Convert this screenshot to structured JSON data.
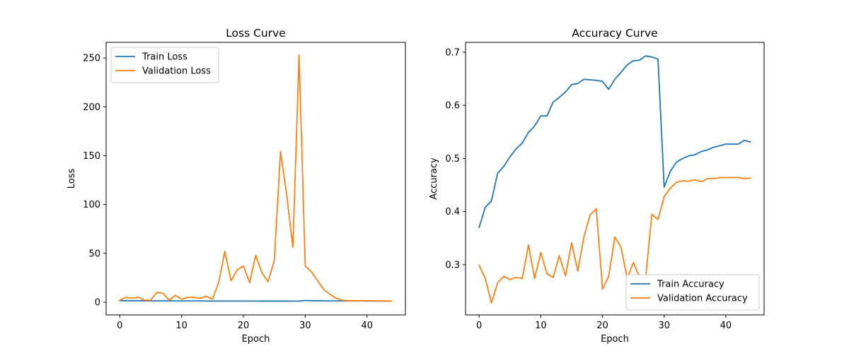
{
  "chart_data": [
    {
      "type": "line",
      "title": "Loss Curve",
      "xlabel": "Epoch",
      "ylabel": "Loss",
      "xlim": [
        -2.2,
        46.2
      ],
      "ylim": [
        -13,
        266
      ],
      "xticks": [
        0,
        10,
        20,
        30,
        40
      ],
      "yticks": [
        0,
        50,
        100,
        150,
        200,
        250
      ],
      "grid": false,
      "legend_position": "top-left",
      "x": [
        0,
        1,
        2,
        3,
        4,
        5,
        6,
        7,
        8,
        9,
        10,
        11,
        12,
        13,
        14,
        15,
        16,
        17,
        18,
        19,
        20,
        21,
        22,
        23,
        24,
        25,
        26,
        27,
        28,
        29,
        30,
        31,
        32,
        33,
        34,
        35,
        36,
        37,
        38,
        39,
        40,
        41,
        42,
        43,
        44
      ],
      "series": [
        {
          "name": "Train Loss",
          "color": "#1f77b4",
          "values": [
            1.6,
            1.5,
            1.5,
            1.45,
            1.4,
            1.4,
            1.35,
            1.35,
            1.3,
            1.3,
            1.3,
            1.25,
            1.25,
            1.25,
            1.2,
            1.2,
            1.2,
            1.2,
            1.2,
            1.2,
            1.2,
            1.2,
            1.2,
            1.15,
            1.15,
            1.15,
            1.15,
            1.15,
            1.1,
            1.1,
            1.7,
            1.5,
            1.4,
            1.35,
            1.3,
            1.3,
            1.25,
            1.25,
            1.25,
            1.25,
            1.2,
            1.2,
            1.2,
            1.2,
            1.2
          ]
        },
        {
          "name": "Validation Loss",
          "color": "#ff7f0e",
          "values": [
            2,
            5,
            4,
            5,
            2,
            2,
            10,
            9,
            2,
            7,
            3,
            5,
            5,
            4,
            6,
            3,
            20,
            52,
            22,
            33,
            37,
            20,
            48,
            30,
            21,
            43,
            154,
            110,
            56,
            253,
            37,
            31,
            22,
            13,
            8,
            4,
            2,
            1.5,
            1.5,
            1.4,
            1.4,
            1.4,
            1.3,
            1.3,
            1.3
          ]
        }
      ]
    },
    {
      "type": "line",
      "title": "Accuracy Curve",
      "xlabel": "Epoch",
      "ylabel": "Accuracy",
      "xlim": [
        -2.2,
        46.2
      ],
      "ylim": [
        0.2055,
        0.7185
      ],
      "xticks": [
        0,
        10,
        20,
        30,
        40
      ],
      "yticks": [
        0.3,
        0.4,
        0.5,
        0.6,
        0.7
      ],
      "grid": false,
      "legend_position": "bottom-right",
      "x": [
        0,
        1,
        2,
        3,
        4,
        5,
        6,
        7,
        8,
        9,
        10,
        11,
        12,
        13,
        14,
        15,
        16,
        17,
        18,
        19,
        20,
        21,
        22,
        23,
        24,
        25,
        26,
        27,
        28,
        29,
        30,
        31,
        32,
        33,
        34,
        35,
        36,
        37,
        38,
        39,
        40,
        41,
        42,
        43,
        44
      ],
      "series": [
        {
          "name": "Train Accuracy",
          "color": "#1f77b4",
          "values": [
            0.37,
            0.408,
            0.42,
            0.472,
            0.485,
            0.503,
            0.518,
            0.529,
            0.549,
            0.561,
            0.58,
            0.58,
            0.606,
            0.615,
            0.625,
            0.639,
            0.641,
            0.649,
            0.648,
            0.647,
            0.645,
            0.63,
            0.649,
            0.662,
            0.676,
            0.684,
            0.685,
            0.693,
            0.691,
            0.687,
            0.446,
            0.476,
            0.493,
            0.5,
            0.505,
            0.507,
            0.513,
            0.516,
            0.521,
            0.524,
            0.527,
            0.527,
            0.527,
            0.534,
            0.531
          ]
        },
        {
          "name": "Validation Accuracy",
          "color": "#ff7f0e",
          "values": [
            0.299,
            0.274,
            0.228,
            0.266,
            0.278,
            0.272,
            0.276,
            0.274,
            0.337,
            0.274,
            0.323,
            0.283,
            0.276,
            0.317,
            0.279,
            0.341,
            0.288,
            0.353,
            0.394,
            0.405,
            0.254,
            0.278,
            0.352,
            0.333,
            0.274,
            0.304,
            0.277,
            0.275,
            0.395,
            0.385,
            0.428,
            0.444,
            0.455,
            0.458,
            0.457,
            0.46,
            0.456,
            0.462,
            0.462,
            0.464,
            0.464,
            0.464,
            0.464,
            0.462,
            0.463
          ]
        }
      ]
    }
  ]
}
